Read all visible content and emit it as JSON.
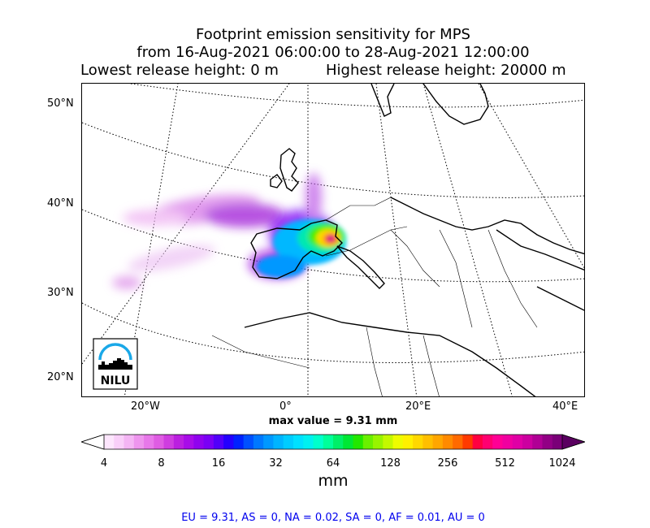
{
  "title": {
    "line1": "Footprint emission sensitivity for MPS",
    "line2": "from 16-Aug-2021 06:00:00 to 28-Aug-2021 12:00:00",
    "lowest": "Lowest release height: 0 m",
    "highest": "Highest release height: 20000 m"
  },
  "axes": {
    "lat_labels": [
      "50°N",
      "40°N",
      "30°N",
      "20°N"
    ],
    "lon_labels": [
      "20°W",
      "0°",
      "20°E",
      "40°E"
    ]
  },
  "logo": {
    "text": "NILU"
  },
  "max_value": "max value = 9.31 mm",
  "colorbar": {
    "ticks": [
      "4",
      "8",
      "16",
      "32",
      "64",
      "128",
      "256",
      "512",
      "1024"
    ],
    "unit": "mm",
    "colors": [
      "#fde6fd",
      "#f9cff9",
      "#f4b5f4",
      "#ee95ee",
      "#e878ea",
      "#df5ce3",
      "#cf3de0",
      "#bb1fe0",
      "#a80ce8",
      "#9002ee",
      "#7a00f5",
      "#5200fa",
      "#2400ff",
      "#0022ff",
      "#0050ff",
      "#0078ff",
      "#0098ff",
      "#00b4ff",
      "#00ccff",
      "#00e0ff",
      "#00f0f0",
      "#00ffcc",
      "#00ff9a",
      "#00f068",
      "#00e834",
      "#22e800",
      "#6af000",
      "#98f400",
      "#c4f800",
      "#eefc00",
      "#fff000",
      "#ffd800",
      "#ffbf00",
      "#ffa600",
      "#ff8a00",
      "#ff6a00",
      "#ff3a00",
      "#ff0040",
      "#ff0070",
      "#ff0095",
      "#f000a0",
      "#e000a5",
      "#cc00a0",
      "#b00095",
      "#920085",
      "#7a0078"
    ]
  },
  "summary": "EU = 9.31,  AS = 0,  NA = 0.02,  SA = 0,  AF = 0.01,  AU = 0"
}
